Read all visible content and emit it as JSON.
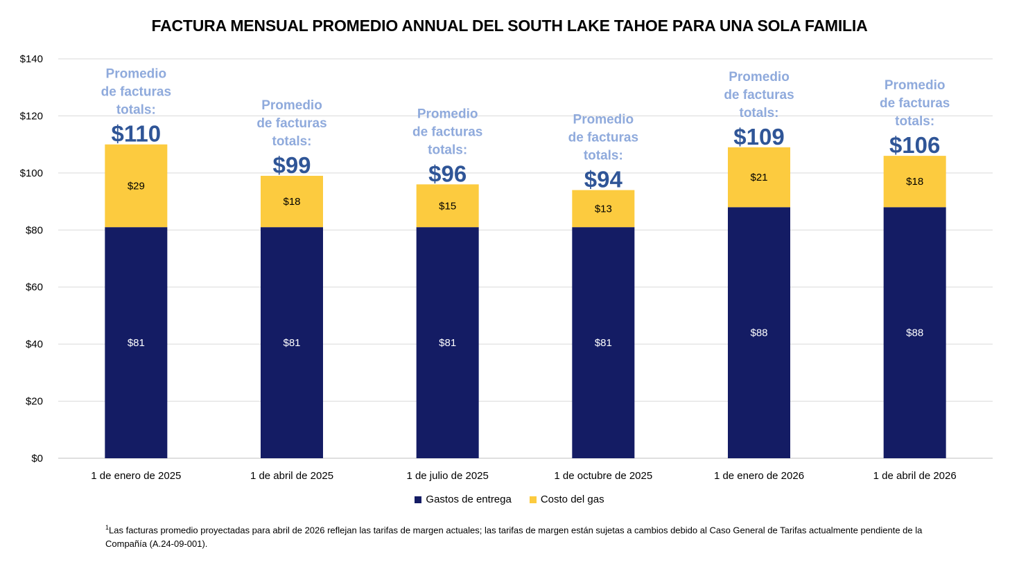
{
  "chart_data": {
    "type": "bar",
    "stacked": true,
    "title": "FACTURA MENSUAL PROMEDIO ANNUAL DEL SOUTH LAKE TAHOE PARA UNA SOLA FAMILIA",
    "categories": [
      "1 de enero de 2025",
      "1 de abril de 2025",
      "1 de julio de 2025",
      "1 de octubre de 2025",
      "1 de enero de 2026",
      "1 de abril de 2026"
    ],
    "series": [
      {
        "name": "Gastos de entrega",
        "color": "#141C64",
        "values": [
          81,
          81,
          81,
          81,
          88,
          88
        ],
        "labels": [
          "$81",
          "$81",
          "$81",
          "$81",
          "$88",
          "$88"
        ]
      },
      {
        "name": "Costo del gas",
        "color": "#FCCB3F",
        "values": [
          29,
          18,
          15,
          13,
          21,
          18
        ],
        "labels": [
          "$29",
          "$18",
          "$15",
          "$13",
          "$21",
          "$18"
        ]
      }
    ],
    "totals": {
      "caption": [
        "Promedio",
        "de facturas",
        "totals:"
      ],
      "labels": [
        "$110",
        "$99",
        "$96",
        "$94",
        "$109",
        "$106"
      ],
      "values": [
        110,
        99,
        96,
        94,
        109,
        106
      ]
    },
    "ylim": [
      0,
      140
    ],
    "yticks": [
      0,
      20,
      40,
      60,
      80,
      100,
      120,
      140
    ],
    "ytick_labels": [
      "$0",
      "$20",
      "$40",
      "$60",
      "$80",
      "$100",
      "$120",
      "$140"
    ],
    "grid": true,
    "legend_position": "bottom",
    "xlabel": "",
    "ylabel": ""
  },
  "footnote": {
    "marker": "1",
    "text": "Las facturas promedio proyectadas para abril de 2026 reflejan las tarifas de margen actuales; las tarifas de margen están sujetas a cambios debido al Caso General de Tarifas actualmente pendiente de la Compañía (A.24-09-001)."
  }
}
